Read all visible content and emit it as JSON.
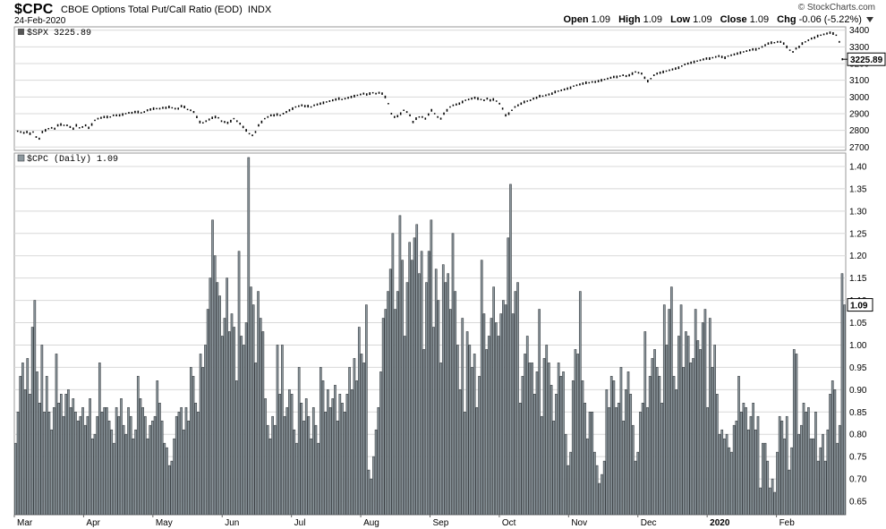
{
  "header": {
    "symbol": "$CPC",
    "description": "CBOE Options Total Put/Call Ratio (EOD)",
    "exchange": "INDX",
    "date": "24-Feb-2020",
    "brand": "© StockCharts.com",
    "open_label": "Open",
    "open": "1.09",
    "high_label": "High",
    "high": "1.09",
    "low_label": "Low",
    "low": "1.09",
    "close_label": "Close",
    "close": "1.09",
    "chg_label": "Chg",
    "chg": "-0.06 (-5.22%)"
  },
  "colors": {
    "bar_fill": "#8c979d",
    "bar_stroke": "#3a3f43",
    "grid": "#d8d8d8",
    "price": "#000000"
  },
  "chart_data": [
    {
      "type": "line",
      "title": "$SPX 3225.89",
      "series": [
        {
          "name": "$SPX",
          "values": [
            2795,
            2790,
            2785,
            2790,
            2780,
            2790,
            2760,
            2750,
            2790,
            2800,
            2810,
            2815,
            2810,
            2830,
            2835,
            2830,
            2830,
            2820,
            2810,
            2830,
            2815,
            2820,
            2830,
            2815,
            2835,
            2860,
            2870,
            2875,
            2880,
            2880,
            2880,
            2890,
            2890,
            2890,
            2895,
            2900,
            2905,
            2905,
            2910,
            2910,
            2905,
            2910,
            2920,
            2925,
            2930,
            2930,
            2930,
            2935,
            2935,
            2940,
            2935,
            2930,
            2930,
            2945,
            2940,
            2925,
            2920,
            2910,
            2880,
            2850,
            2845,
            2855,
            2865,
            2875,
            2880,
            2875,
            2855,
            2850,
            2845,
            2855,
            2870,
            2855,
            2840,
            2820,
            2800,
            2780,
            2770,
            2790,
            2830,
            2850,
            2870,
            2880,
            2890,
            2890,
            2895,
            2890,
            2900,
            2910,
            2920,
            2930,
            2940,
            2945,
            2950,
            2945,
            2945,
            2940,
            2950,
            2955,
            2960,
            2965,
            2970,
            2975,
            2980,
            2985,
            2990,
            2985,
            2990,
            2995,
            3000,
            3005,
            3010,
            3015,
            3020,
            3015,
            3020,
            3025,
            3020,
            3025,
            3020,
            3000,
            2960,
            2900,
            2880,
            2885,
            2900,
            2920,
            2910,
            2890,
            2850,
            2870,
            2880,
            2880,
            2870,
            2895,
            2920,
            2900,
            2880,
            2870,
            2900,
            2920,
            2940,
            2950,
            2955,
            2960,
            2970,
            2980,
            2985,
            2990,
            2995,
            2990,
            2985,
            2980,
            2990,
            2980,
            2985,
            2975,
            2960,
            2930,
            2890,
            2900,
            2920,
            2940,
            2950,
            2960,
            2970,
            2975,
            2980,
            2990,
            2995,
            3005,
            3005,
            3010,
            3015,
            3020,
            3030,
            3035,
            3040,
            3045,
            3050,
            3055,
            3065,
            3070,
            3075,
            3080,
            3085,
            3085,
            3090,
            3090,
            3095,
            3100,
            3105,
            3110,
            3115,
            3120,
            3120,
            3125,
            3130,
            3125,
            3130,
            3140,
            3150,
            3145,
            3140,
            3115,
            3095,
            3110,
            3130,
            3140,
            3145,
            3150,
            3155,
            3160,
            3165,
            3170,
            3175,
            3185,
            3195,
            3200,
            3205,
            3210,
            3215,
            3220,
            3225,
            3230,
            3230,
            3235,
            3240,
            3245,
            3240,
            3235,
            3245,
            3250,
            3255,
            3260,
            3265,
            3270,
            3275,
            3280,
            3285,
            3285,
            3290,
            3300,
            3310,
            3320,
            3325,
            3325,
            3330,
            3330,
            3320,
            3300,
            3280,
            3270,
            3290,
            3300,
            3320,
            3330,
            3340,
            3350,
            3355,
            3365,
            3370,
            3375,
            3380,
            3385,
            3380,
            3370,
            3330,
            3225.89
          ]
        }
      ],
      "ylim": [
        2680,
        3420
      ],
      "yticks": [
        "2700",
        "2800",
        "2900",
        "3000",
        "3100",
        "3200",
        "3300",
        "3400"
      ],
      "last_value_label": "3225.89"
    },
    {
      "type": "bar",
      "title": "$CPC (Daily) 1.09",
      "x_labels": [
        "Mar",
        "Apr",
        "May",
        "Jun",
        "Jul",
        "Aug",
        "Sep",
        "Oct",
        "Nov",
        "Dec",
        "2020",
        "Feb"
      ],
      "series": [
        {
          "name": "$CPC",
          "values": [
            0.78,
            0.85,
            0.93,
            0.96,
            0.9,
            0.97,
            0.89,
            1.04,
            1.1,
            0.94,
            0.87,
            1.0,
            0.85,
            0.93,
            0.85,
            0.81,
            0.86,
            0.98,
            0.87,
            0.89,
            0.84,
            0.89,
            0.9,
            0.86,
            0.88,
            0.85,
            0.83,
            0.84,
            0.86,
            0.82,
            0.84,
            0.88,
            0.79,
            0.8,
            0.84,
            0.96,
            0.85,
            0.86,
            0.86,
            0.83,
            0.81,
            0.78,
            0.86,
            0.84,
            0.88,
            0.82,
            0.8,
            0.86,
            0.84,
            0.79,
            0.81,
            0.93,
            0.88,
            0.86,
            0.84,
            0.79,
            0.82,
            0.83,
            0.84,
            0.92,
            0.87,
            0.83,
            0.78,
            0.77,
            0.73,
            0.74,
            0.79,
            0.84,
            0.85,
            0.86,
            0.81,
            0.86,
            0.83,
            0.95,
            0.93,
            0.87,
            0.85,
            0.98,
            0.95,
            1.0,
            1.08,
            1.15,
            1.28,
            1.2,
            1.14,
            1.11,
            1.02,
            1.06,
            1.15,
            1.03,
            1.07,
            1.04,
            0.92,
            1.21,
            1.02,
            1.0,
            1.05,
            1.42,
            1.13,
            1.09,
            0.96,
            1.12,
            1.06,
            1.03,
            0.88,
            0.82,
            0.79,
            0.84,
            0.82,
            1.0,
            0.89,
            1.0,
            0.84,
            0.86,
            0.9,
            0.89,
            0.81,
            0.78,
            0.95,
            0.87,
            0.83,
            0.88,
            0.84,
            0.79,
            0.86,
            0.82,
            0.78,
            0.95,
            0.92,
            0.85,
            0.9,
            0.86,
            0.88,
            0.91,
            0.83,
            0.89,
            0.87,
            0.85,
            0.89,
            0.95,
            0.9,
            0.97,
            0.92,
            1.04,
            0.98,
            0.96,
            1.09,
            0.72,
            0.7,
            0.75,
            0.81,
            0.86,
            0.94,
            1.06,
            1.08,
            1.12,
            1.17,
            1.25,
            1.08,
            1.12,
            1.29,
            1.19,
            1.02,
            1.14,
            1.23,
            1.19,
            1.24,
            1.27,
            1.16,
            1.21,
            0.99,
            1.14,
            1.21,
            1.28,
            1.04,
            1.17,
            1.1,
            0.96,
            1.18,
            1.14,
            1.16,
            1.08,
            1.25,
            1.12,
            1.0,
            0.9,
            1.06,
            0.85,
            1.03,
            1.0,
            0.95,
            0.98,
            0.86,
            0.93,
            1.19,
            1.07,
            0.99,
            1.02,
            1.06,
            1.13,
            1.05,
            1.02,
            1.07,
            1.1,
            1.09,
            1.24,
            1.36,
            1.07,
            1.12,
            1.14,
            0.87,
            0.93,
            0.98,
            1.02,
            0.96,
            0.96,
            0.89,
            0.94,
            1.08,
            0.84,
            0.97,
            1.0,
            0.96,
            0.91,
            0.83,
            0.89,
            0.96,
            0.93,
            0.94,
            0.8,
            0.73,
            0.76,
            0.92,
            0.99,
            0.98,
            1.12,
            0.92,
            0.87,
            0.79,
            0.85,
            0.85,
            0.76,
            0.73,
            0.69,
            0.71,
            0.74,
            0.9,
            0.86,
            0.93,
            0.92,
            0.86,
            0.87,
            0.95,
            0.83,
            0.9,
            0.94,
            0.89,
            0.82,
            0.74,
            0.76,
            0.85,
            0.87,
            1.03,
            0.86,
            0.93,
            0.97,
            0.99,
            0.95,
            0.93,
            0.87,
            1.09,
            1.0,
            1.08,
            1.13,
            0.93,
            0.9,
            1.02,
            1.09,
            0.95,
            1.03,
            1.02,
            0.96,
            0.97,
            1.08,
            1.01,
            0.99,
            1.05,
            1.08,
            0.86,
            1.06,
            0.95,
            1.0,
            0.89,
            0.8,
            0.81,
            0.79,
            0.8,
            0.77,
            0.76,
            0.82,
            0.83,
            0.93,
            0.85,
            0.87,
            0.86,
            0.81,
            0.84,
            0.87,
            0.81,
            0.84,
            0.68,
            0.78,
            0.78,
            0.74,
            0.68,
            0.7,
            0.67,
            0.76,
            0.84,
            0.83,
            0.79,
            0.84,
            0.72,
            0.77,
            0.99,
            0.98,
            0.8,
            0.82,
            0.87,
            0.85,
            0.86,
            0.79,
            0.79,
            0.85,
            0.74,
            0.77,
            0.8,
            0.74,
            0.81,
            0.89,
            0.92,
            0.9,
            0.78,
            0.82,
            1.16,
            1.09
          ]
        }
      ],
      "ylim": [
        0.62,
        1.43
      ],
      "yticks": [
        "0.65",
        "0.70",
        "0.75",
        "0.80",
        "0.85",
        "0.90",
        "0.95",
        "1.00",
        "1.05",
        "1.10",
        "1.15",
        "1.20",
        "1.25",
        "1.30",
        "1.35",
        "1.40"
      ],
      "last_value_label": "1.09"
    }
  ]
}
